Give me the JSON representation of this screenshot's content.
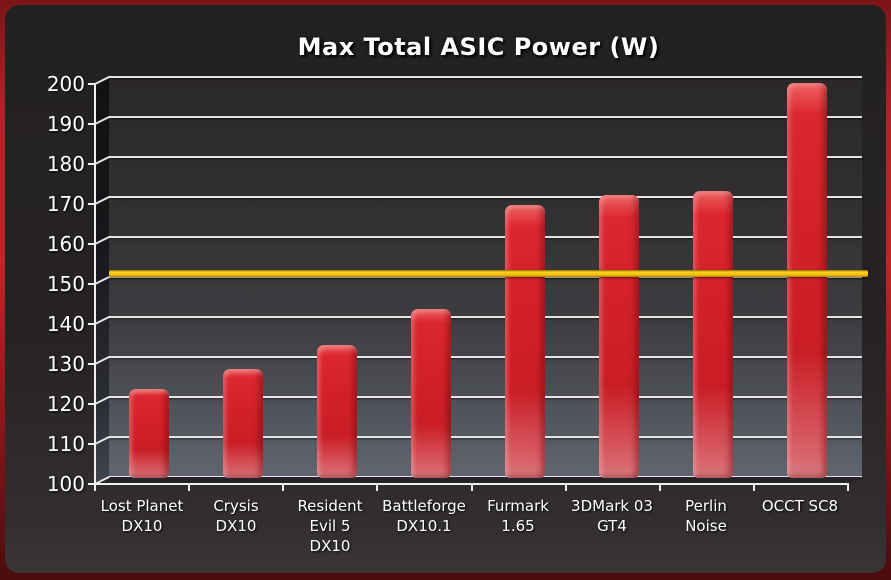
{
  "window": {
    "title": "Max Total ASIC Power (W)"
  },
  "chart_data": {
    "type": "bar",
    "title": "Max Total ASIC Power (W)",
    "categories": [
      "Lost Planet DX10",
      "Crysis DX10",
      "Resident Evil 5 DX10",
      "Battleforge DX10.1",
      "Furmark 1.65",
      "3DMark 03 GT4",
      "Perlin Noise",
      "OCCT SC8"
    ],
    "category_label_lines": [
      [
        "Lost Planet",
        "DX10"
      ],
      [
        "Crysis",
        "DX10"
      ],
      [
        "Resident",
        "Evil 5",
        "DX10"
      ],
      [
        "Battleforge",
        "DX10.1"
      ],
      [
        "Furmark",
        "1.65"
      ],
      [
        "3DMark 03",
        "GT4"
      ],
      [
        "Perlin",
        "Noise"
      ],
      [
        "OCCT SC8"
      ]
    ],
    "values": [
      122,
      127,
      133,
      142,
      168,
      170.5,
      171.5,
      198.5
    ],
    "xlabel": "",
    "ylabel": "",
    "ylim": [
      100,
      200
    ],
    "y_ticks": [
      100,
      110,
      120,
      130,
      140,
      150,
      160,
      170,
      180,
      190,
      200
    ],
    "grid": true,
    "legend": "none",
    "style_3d": true,
    "reference_line": {
      "value": 151,
      "label": ""
    },
    "colors": {
      "bar": "#d22028",
      "reference_line": "#f2bd0b",
      "gridline": "#eeeeee",
      "plot_bg_top": "#2b2829",
      "plot_bg_bottom": "#606570",
      "panel_bg": "#242122",
      "frame_red": "#c22428",
      "text": "#ffffff"
    }
  }
}
